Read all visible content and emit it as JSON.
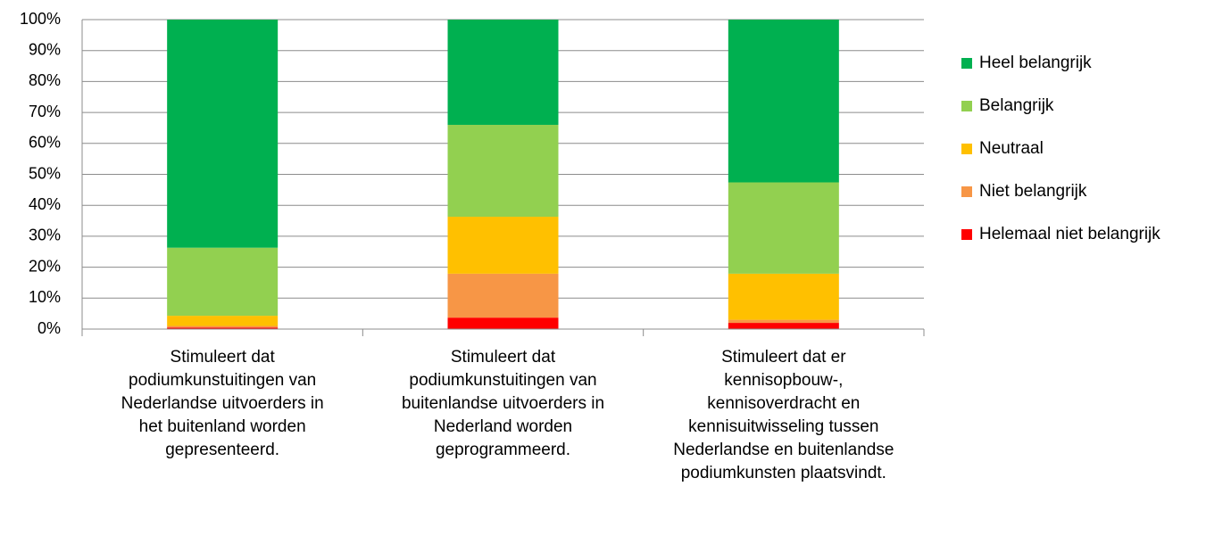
{
  "chart_data": {
    "type": "stacked_bar",
    "categories": [
      "Stimuleert dat podiumkunstuitingen van Nederlandse uitvoerders in het buitenland worden gepresenteerd.",
      "Stimuleert dat podiumkunstuitingen van buitenlandse uitvoerders in Nederland worden geprogrammeerd.",
      "Stimuleert dat er kennisopbouw-, kennisoverdracht en kennisuitwisseling tussen Nederlandse en buitenlandse podiumkunsten plaatsvindt."
    ],
    "series": [
      {
        "name": "Helemaal niet belangrijk",
        "color": "#ff0000",
        "values": [
          0.5,
          3.7,
          2
        ]
      },
      {
        "name": "Niet belangrijk",
        "color": "#f79646",
        "values": [
          0.5,
          14.2,
          1
        ]
      },
      {
        "name": "Neutraal",
        "color": "#ffc000",
        "values": [
          3.3,
          18.4,
          14.9
        ]
      },
      {
        "name": "Belangrijk",
        "color": "#92d050",
        "values": [
          22,
          29.7,
          29.5
        ]
      },
      {
        "name": "Heel belangrijk",
        "color": "#00b050",
        "values": [
          73.7,
          34,
          52.6
        ]
      }
    ],
    "ylim": [
      0,
      100
    ],
    "yticks": [
      {
        "value": 0,
        "label": "0%"
      },
      {
        "value": 10,
        "label": "10%"
      },
      {
        "value": 20,
        "label": "20%"
      },
      {
        "value": 30,
        "label": "30%"
      },
      {
        "value": 40,
        "label": "40%"
      },
      {
        "value": 50,
        "label": "50%"
      },
      {
        "value": 60,
        "label": "60%"
      },
      {
        "value": 70,
        "label": "70%"
      },
      {
        "value": 80,
        "label": "80%"
      },
      {
        "value": 90,
        "label": "90%"
      },
      {
        "value": 100,
        "label": "100%"
      }
    ],
    "grid": true,
    "legend": "right"
  }
}
